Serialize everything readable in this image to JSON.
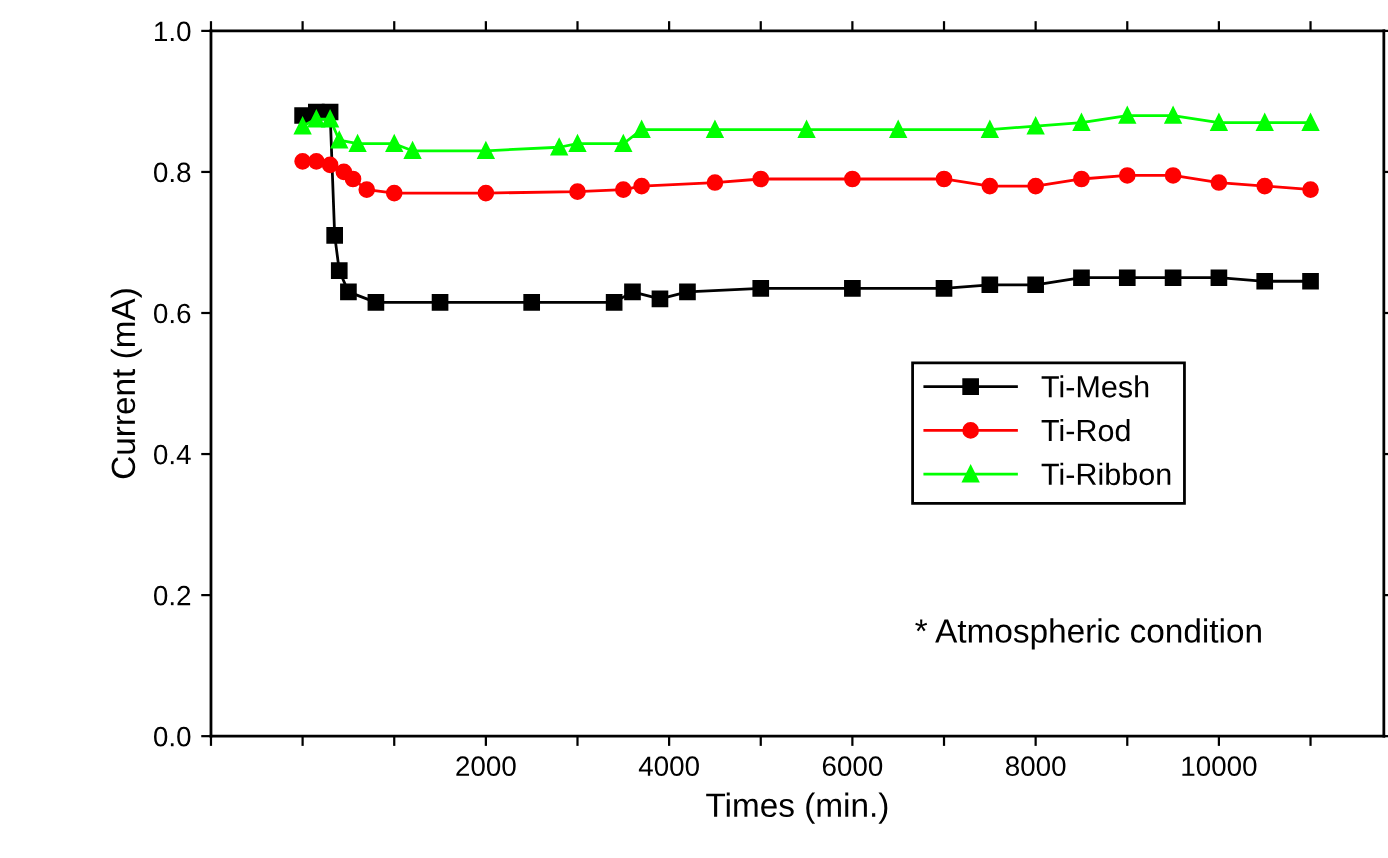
{
  "chart_data": {
    "type": "line",
    "xlabel": "Times (min.)",
    "ylabel": "Current (mA)",
    "xlim": [
      -1000,
      11800
    ],
    "ylim": [
      0,
      1.0
    ],
    "xticks": [
      {
        "value": -1000,
        "label": null
      },
      {
        "value": 0,
        "label": null
      },
      {
        "value": 1000,
        "label": null
      },
      2000,
      {
        "value": 3000,
        "label": null
      },
      4000,
      {
        "value": 5000,
        "label": null
      },
      6000,
      {
        "value": 7000,
        "label": null
      },
      8000,
      {
        "value": 9000,
        "label": null
      },
      10000,
      {
        "value": 11000,
        "label": null
      }
    ],
    "yticks": [
      {
        "value": 0,
        "label": "0.0"
      },
      0.2,
      0.4,
      0.6,
      0.8,
      {
        "value": 1.0,
        "label": "1.0"
      }
    ],
    "grid": false,
    "legend": "bottom right",
    "line_style": "solid",
    "annotations": [
      "* Atmospheric condition"
    ],
    "series": [
      {
        "name": "Ti-Mesh",
        "color": "#000000",
        "marker": "square",
        "x": [
          0,
          150,
          300,
          350,
          400,
          500,
          800,
          1500,
          2500,
          3400,
          3600,
          3900,
          4200,
          5000,
          6000,
          7000,
          7500,
          8000,
          8500,
          9000,
          9500,
          10000,
          10500,
          11000
        ],
        "values": [
          0.88,
          0.885,
          0.885,
          0.71,
          0.66,
          0.63,
          0.615,
          0.615,
          0.615,
          0.615,
          0.63,
          0.62,
          0.63,
          0.635,
          0.635,
          0.635,
          0.64,
          0.64,
          0.65,
          0.65,
          0.65,
          0.65,
          0.645,
          0.645
        ]
      },
      {
        "name": "Ti-Rod",
        "color": "#ff0000",
        "marker": "circle",
        "x": [
          0,
          150,
          300,
          450,
          550,
          700,
          1000,
          2000,
          3000,
          3500,
          3700,
          4500,
          5000,
          6000,
          7000,
          7500,
          8000,
          8500,
          9000,
          9500,
          10000,
          10500,
          11000
        ],
        "values": [
          0.815,
          0.815,
          0.81,
          0.8,
          0.79,
          0.775,
          0.77,
          0.77,
          0.772,
          0.775,
          0.78,
          0.785,
          0.79,
          0.79,
          0.79,
          0.78,
          0.78,
          0.79,
          0.795,
          0.795,
          0.785,
          0.78,
          0.775
        ]
      },
      {
        "name": "Ti-Ribbon",
        "color": "#00ff00",
        "marker": "triangle",
        "x": [
          0,
          150,
          300,
          400,
          600,
          1000,
          1200,
          2000,
          2800,
          3000,
          3500,
          3700,
          4500,
          5500,
          6500,
          7500,
          8000,
          8500,
          9000,
          9500,
          10000,
          10500,
          11000
        ],
        "values": [
          0.865,
          0.875,
          0.875,
          0.845,
          0.84,
          0.84,
          0.83,
          0.83,
          0.835,
          0.84,
          0.84,
          0.86,
          0.86,
          0.86,
          0.86,
          0.86,
          0.865,
          0.87,
          0.88,
          0.88,
          0.87,
          0.87,
          0.87
        ]
      }
    ]
  }
}
